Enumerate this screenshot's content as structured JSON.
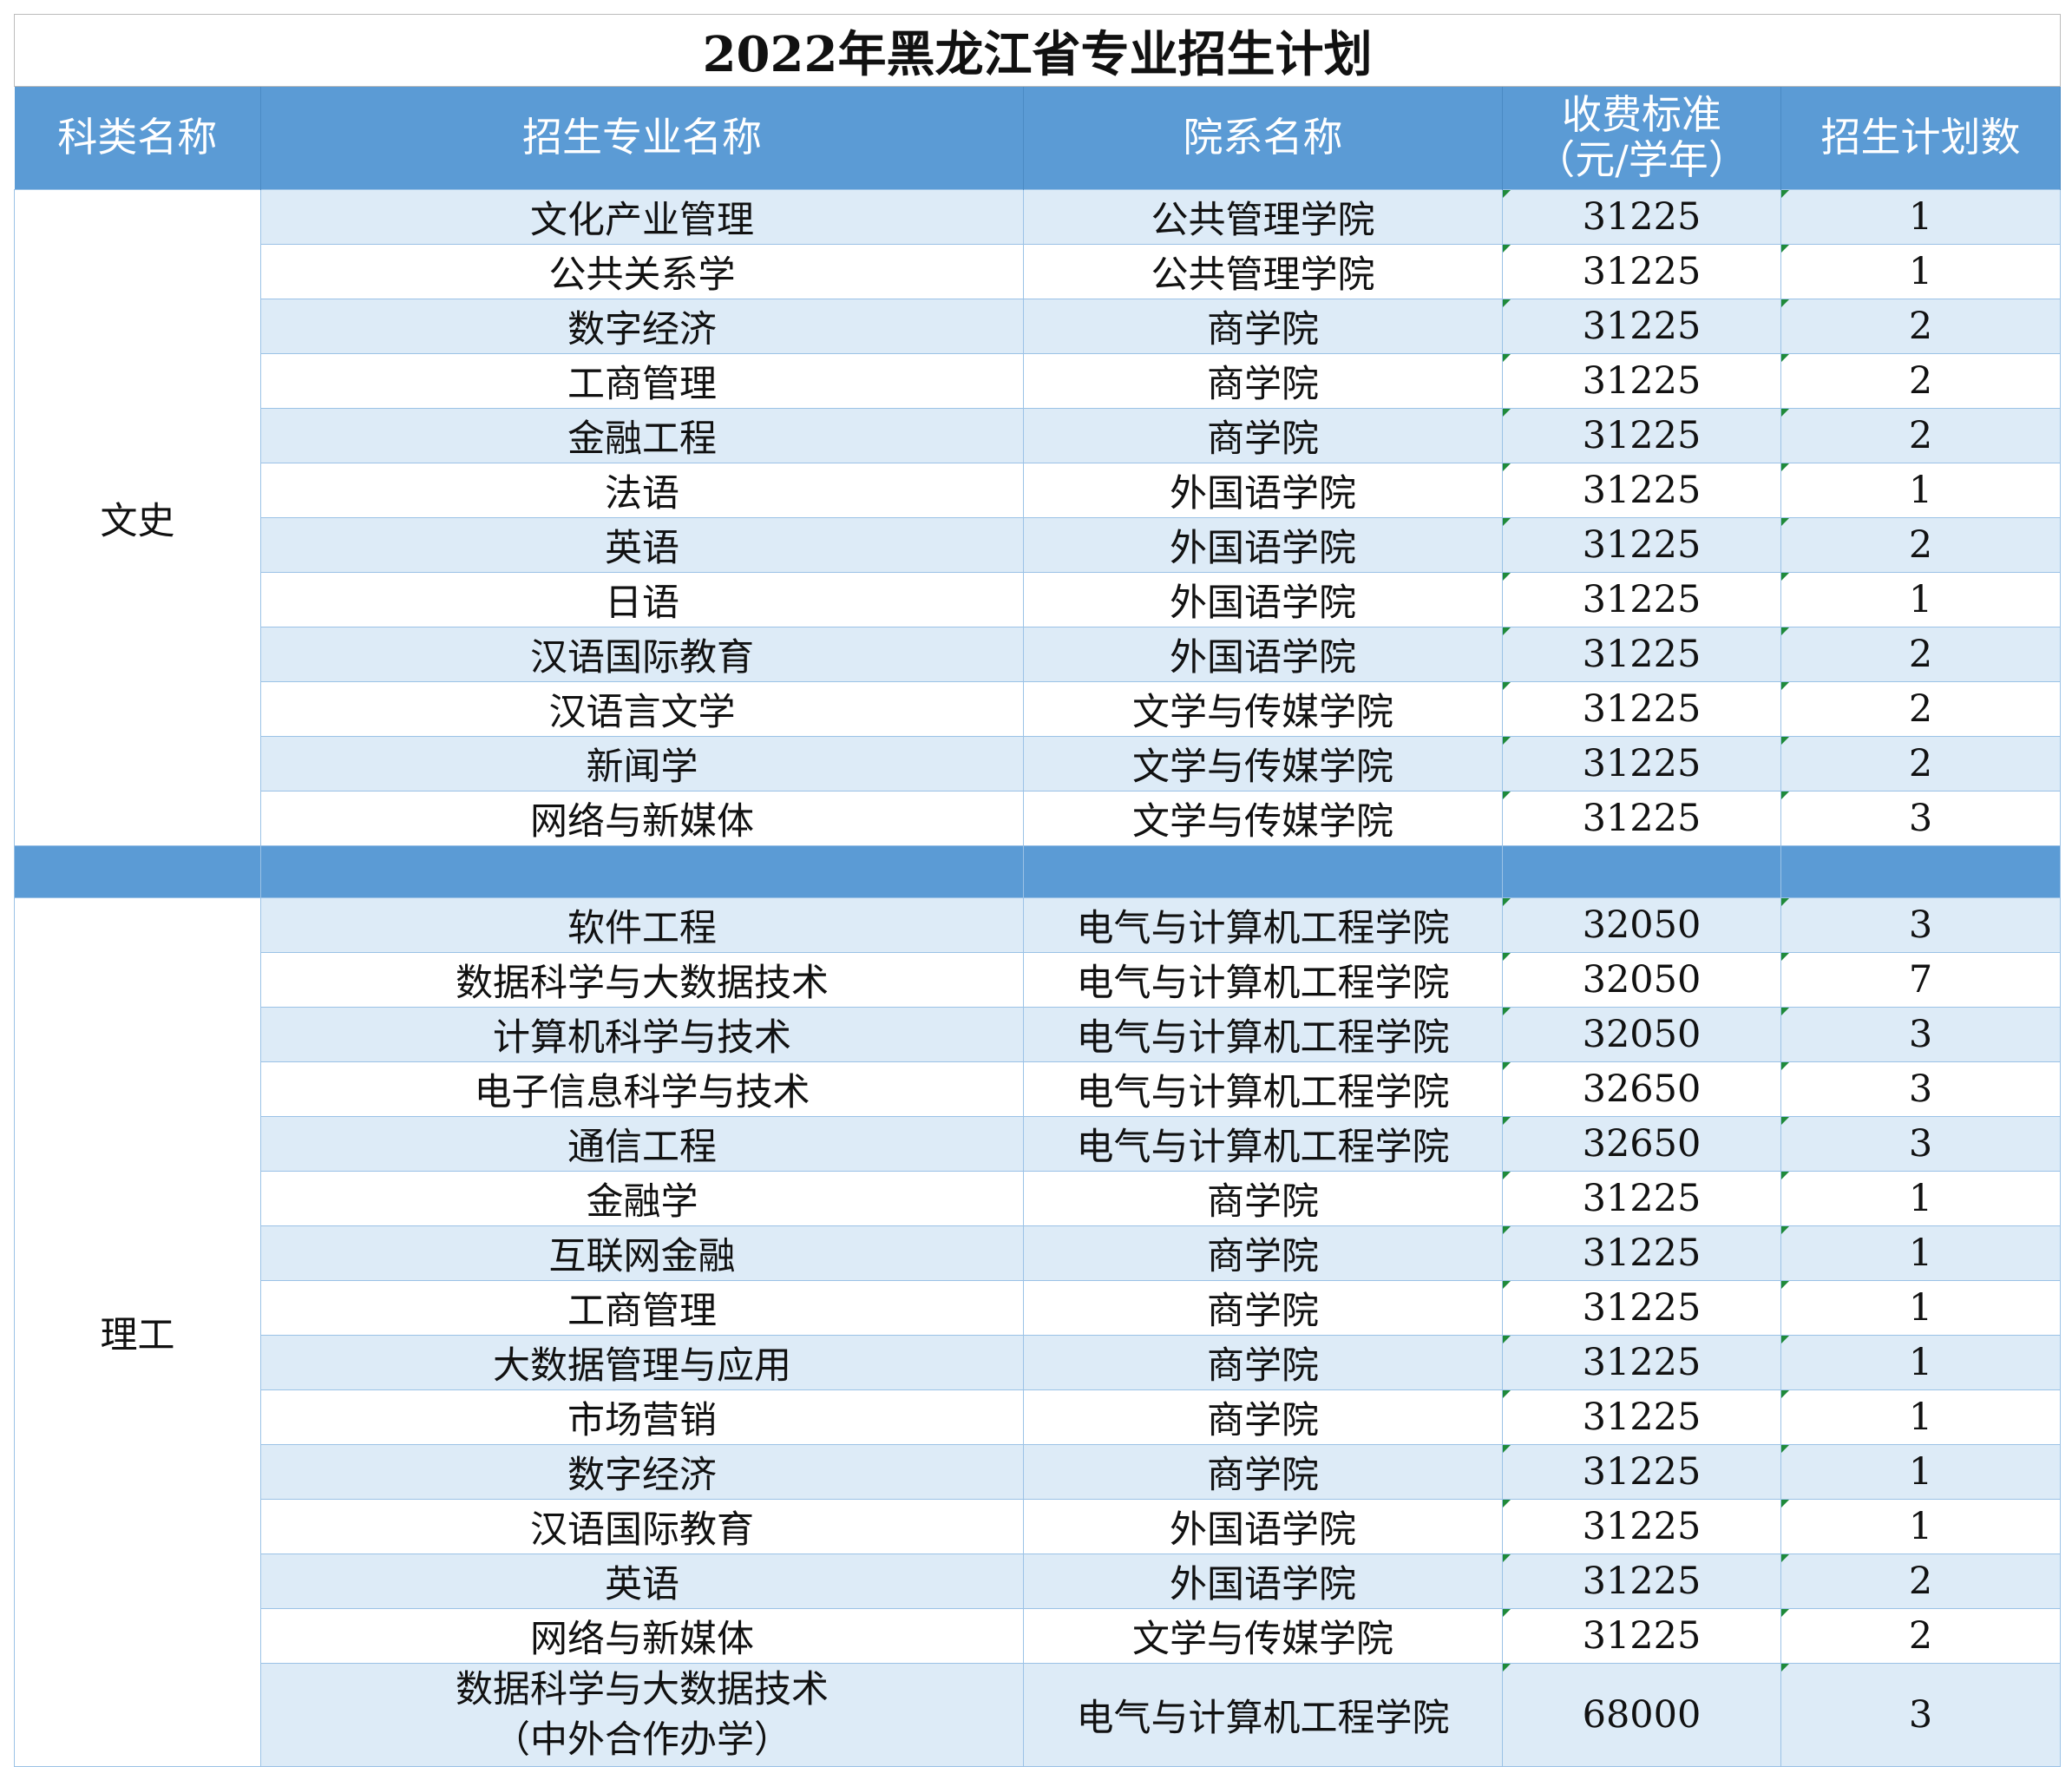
{
  "title": "2022年黑龙江省专业招生计划",
  "headers": {
    "category": "科类名称",
    "major": "招生专业名称",
    "department": "院系名称",
    "fee_line1": "收费标准",
    "fee_line2": "（元/学年）",
    "plan": "招生计划数"
  },
  "groups": [
    {
      "category": "文史",
      "rows": [
        {
          "major": "文化产业管理",
          "dept": "公共管理学院",
          "fee": "31225",
          "plan": "1"
        },
        {
          "major": "公共关系学",
          "dept": "公共管理学院",
          "fee": "31225",
          "plan": "1"
        },
        {
          "major": "数字经济",
          "dept": "商学院",
          "fee": "31225",
          "plan": "2"
        },
        {
          "major": "工商管理",
          "dept": "商学院",
          "fee": "31225",
          "plan": "2"
        },
        {
          "major": "金融工程",
          "dept": "商学院",
          "fee": "31225",
          "plan": "2"
        },
        {
          "major": "法语",
          "dept": "外国语学院",
          "fee": "31225",
          "plan": "1"
        },
        {
          "major": "英语",
          "dept": "外国语学院",
          "fee": "31225",
          "plan": "2"
        },
        {
          "major": "日语",
          "dept": "外国语学院",
          "fee": "31225",
          "plan": "1"
        },
        {
          "major": "汉语国际教育",
          "dept": "外国语学院",
          "fee": "31225",
          "plan": "2"
        },
        {
          "major": "汉语言文学",
          "dept": "文学与传媒学院",
          "fee": "31225",
          "plan": "2"
        },
        {
          "major": "新闻学",
          "dept": "文学与传媒学院",
          "fee": "31225",
          "plan": "2"
        },
        {
          "major": "网络与新媒体",
          "dept": "文学与传媒学院",
          "fee": "31225",
          "plan": "3"
        }
      ]
    },
    {
      "category": "理工",
      "rows": [
        {
          "major": "软件工程",
          "dept": "电气与计算机工程学院",
          "fee": "32050",
          "plan": "3"
        },
        {
          "major": "数据科学与大数据技术",
          "dept": "电气与计算机工程学院",
          "fee": "32050",
          "plan": "7"
        },
        {
          "major": "计算机科学与技术",
          "dept": "电气与计算机工程学院",
          "fee": "32050",
          "plan": "3"
        },
        {
          "major": "电子信息科学与技术",
          "dept": "电气与计算机工程学院",
          "fee": "32650",
          "plan": "3"
        },
        {
          "major": "通信工程",
          "dept": "电气与计算机工程学院",
          "fee": "32650",
          "plan": "3"
        },
        {
          "major": "金融学",
          "dept": "商学院",
          "fee": "31225",
          "plan": "1"
        },
        {
          "major": "互联网金融",
          "dept": "商学院",
          "fee": "31225",
          "plan": "1"
        },
        {
          "major": "工商管理",
          "dept": "商学院",
          "fee": "31225",
          "plan": "1"
        },
        {
          "major": "大数据管理与应用",
          "dept": "商学院",
          "fee": "31225",
          "plan": "1"
        },
        {
          "major": "市场营销",
          "dept": "商学院",
          "fee": "31225",
          "plan": "1"
        },
        {
          "major": "数字经济",
          "dept": "商学院",
          "fee": "31225",
          "plan": "1"
        },
        {
          "major": "汉语国际教育",
          "dept": "外国语学院",
          "fee": "31225",
          "plan": "1"
        },
        {
          "major": "英语",
          "dept": "外国语学院",
          "fee": "31225",
          "plan": "2"
        },
        {
          "major": "网络与新媒体",
          "dept": "文学与传媒学院",
          "fee": "31225",
          "plan": "2"
        },
        {
          "major": "数据科学与大数据技术",
          "major_line2": "（中外合作办学）",
          "dept": "电气与计算机工程学院",
          "fee": "68000",
          "plan": "3"
        }
      ]
    }
  ]
}
